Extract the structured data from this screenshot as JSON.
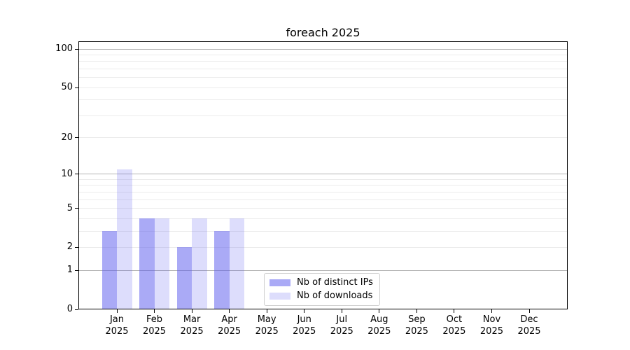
{
  "chart_data": {
    "type": "bar",
    "title": "foreach 2025",
    "categories": [
      "Jan",
      "Feb",
      "Mar",
      "Apr",
      "May",
      "Jun",
      "Jul",
      "Aug",
      "Sep",
      "Oct",
      "Nov",
      "Dec"
    ],
    "x_year_label": "2025",
    "series": [
      {
        "name": "Nb of distinct IPs",
        "color": "rgba(85,85,238,0.5)",
        "values": [
          3,
          4,
          2,
          3,
          0,
          0,
          0,
          0,
          0,
          0,
          0,
          0
        ]
      },
      {
        "name": "Nb of downloads",
        "color": "rgba(85,85,238,0.2)",
        "values": [
          11,
          4,
          4,
          4,
          0,
          0,
          0,
          0,
          0,
          0,
          0,
          0
        ]
      }
    ],
    "yscale": "log1p",
    "ylim": [
      0,
      115
    ],
    "yticks": [
      0,
      1,
      2,
      5,
      10,
      20,
      50,
      100
    ],
    "major_gridlines": [
      1,
      10,
      100
    ],
    "minor_gridlines": [
      2,
      3,
      4,
      5,
      6,
      7,
      8,
      9,
      20,
      30,
      40,
      50,
      60,
      70,
      80,
      90
    ],
    "grid_color_major": "#b4b4b4",
    "grid_color_minor": "#ebebeb",
    "legend_labels": [
      "Nb of distinct IPs",
      "Nb of downloads"
    ]
  }
}
